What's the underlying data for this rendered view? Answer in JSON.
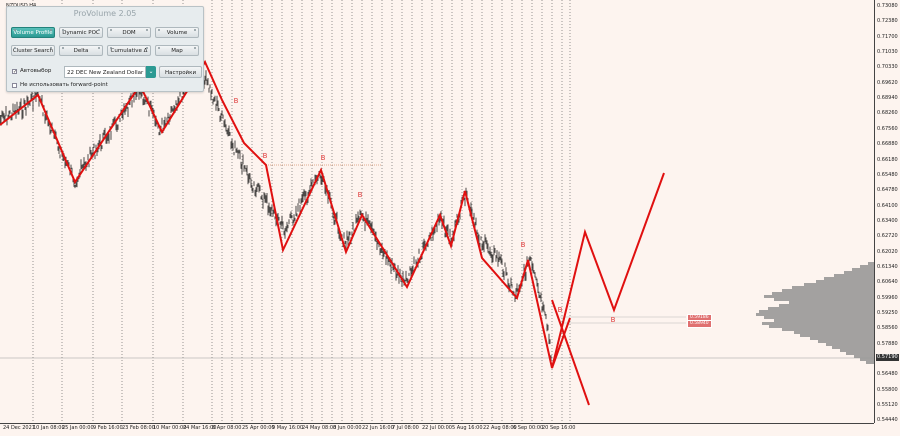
{
  "symbol_label": "NZDUSD,H4",
  "panel": {
    "title": "ProVolume 2.05",
    "buttons_row1": [
      "Volume Profile",
      "Dynamic POC",
      "DOM",
      "Volume"
    ],
    "buttons_row2": [
      "Cluster Search",
      "Delta",
      "Cumulative Δ",
      "Map"
    ],
    "active_button": "Volume Profile",
    "auto_select_label": "Автовыбор",
    "auto_select_checked": true,
    "instrument_value": "22 DEC New Zealand Dollar",
    "settings_label": "Настройки",
    "forward_point_label": "Не использовать forward-point",
    "forward_point_checked": false
  },
  "price_axis": [
    "0.73080",
    "0.72380",
    "0.71700",
    "0.71030",
    "0.70330",
    "0.69620",
    "0.68940",
    "0.68260",
    "0.67560",
    "0.66880",
    "0.66180",
    "0.65480",
    "0.64780",
    "0.64100",
    "0.63400",
    "0.62720",
    "0.62020",
    "0.61340",
    "0.60640",
    "0.59960",
    "0.59250",
    "0.58560",
    "0.57880",
    "0.57190",
    "0.56480",
    "0.55800",
    "0.55120",
    "0.54440"
  ],
  "time_axis": [
    "24 Dec 2021",
    "10 Jan 08:00",
    "25 Jan 00:00",
    "9 Feb 16:00",
    "23 Feb 08:00",
    "10 Mar 00:00",
    "24 Mar 16:00",
    "8 Apr 08:00",
    "25 Apr 00:00",
    "9 May 16:00",
    "24 May 08:00",
    "8 Jun 00:00",
    "22 Jun 16:00",
    "7 Jul 08:00",
    "22 Jul 00:00",
    "5 Aug 16:00",
    "22 Aug 08:00",
    "6 Sep 00:00",
    "20 Sep 16:00"
  ],
  "current_price": "0.57190",
  "level_badges": [
    "0.59186",
    "0.58940"
  ],
  "wave_markers": [
    "B",
    "B",
    "B",
    "B",
    "B",
    "B",
    "B"
  ],
  "colors": {
    "background": "#fdf4ef",
    "zigzag": "#e01010",
    "candles": "#000000",
    "profile": "#8c8c8c"
  }
}
